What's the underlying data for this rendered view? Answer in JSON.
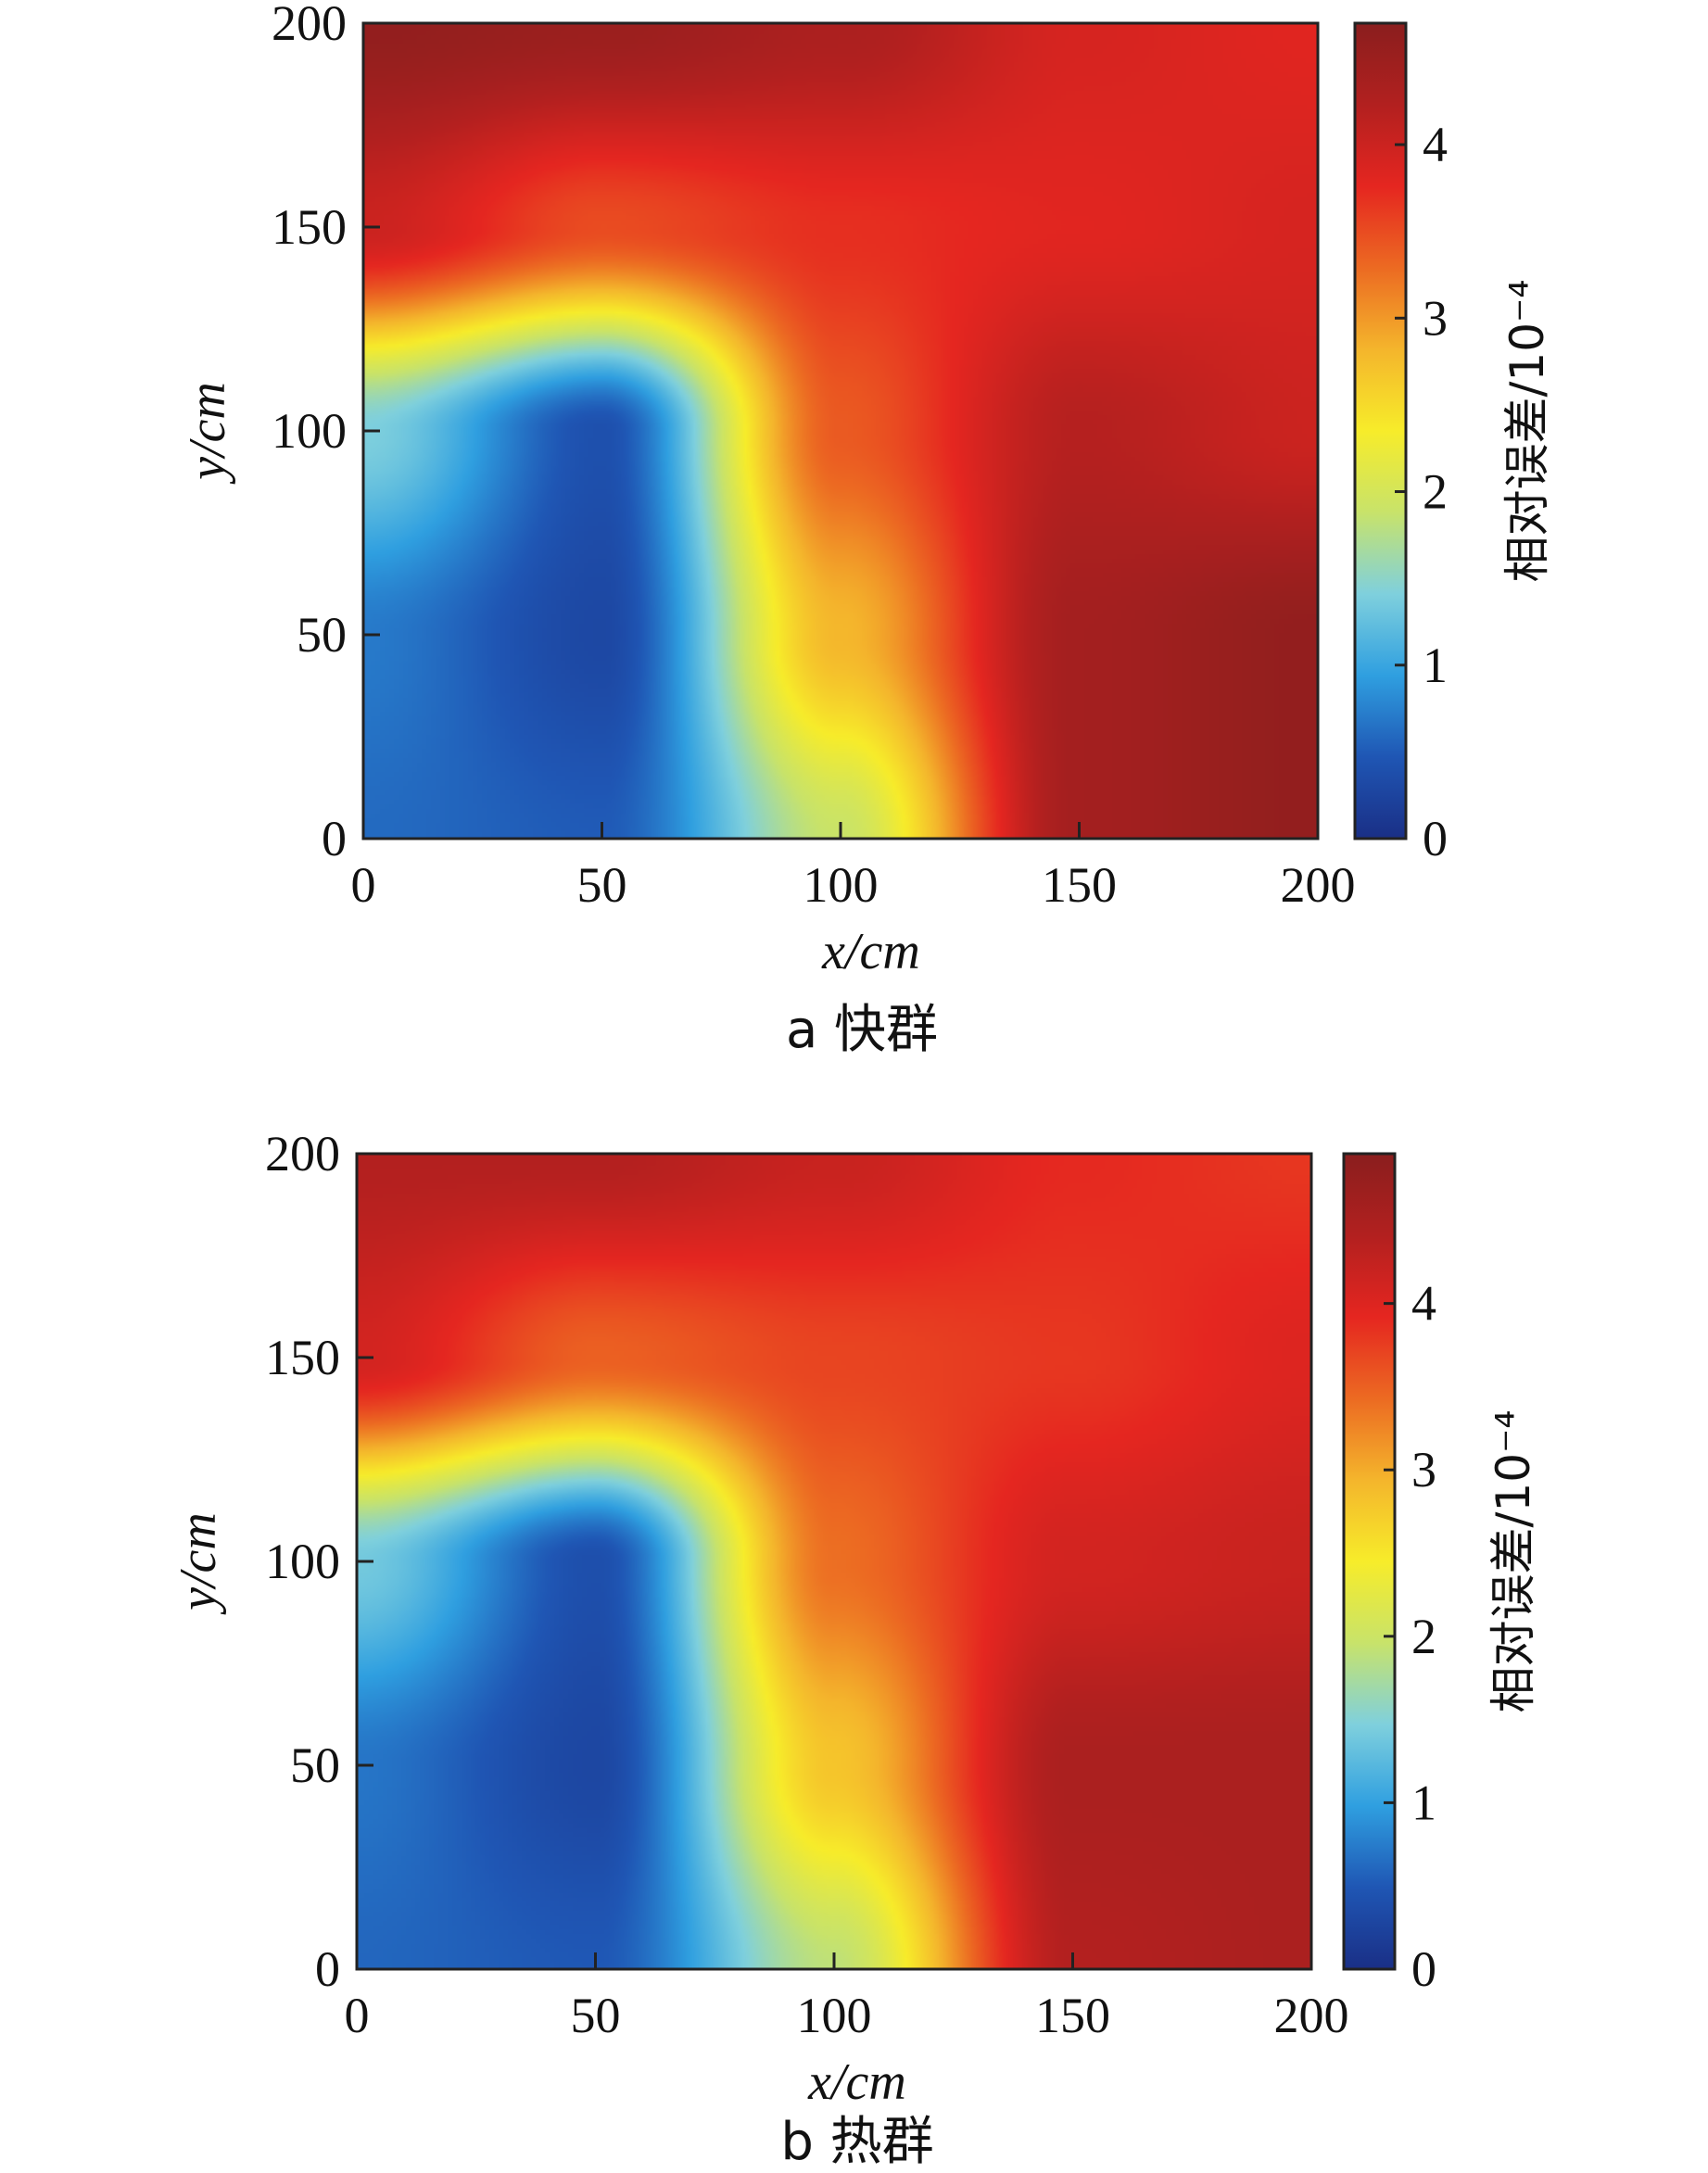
{
  "chart_data": [
    {
      "type": "heatmap",
      "caption": "a 快群",
      "xlabel": "x/cm",
      "ylabel": "y/cm",
      "xlim": [
        0,
        200
      ],
      "ylim": [
        0,
        200
      ],
      "xticks": [
        "0",
        "50",
        "100",
        "150",
        "200"
      ],
      "yticks": [
        "0",
        "50",
        "100",
        "150",
        "200"
      ],
      "colorbar": {
        "label": "相对误差/10⁻⁴",
        "range": [
          0,
          4.7
        ],
        "ticks": [
          "0",
          "1",
          "2",
          "3",
          "4"
        ],
        "colors": [
          "#1a2f86",
          "#1f56b4",
          "#2f9fe0",
          "#7fd0dd",
          "#c8e36a",
          "#f7ec2a",
          "#f4b52c",
          "#ec6a22",
          "#e52620",
          "#b2201f",
          "#8a1e1e"
        ]
      },
      "grid_x": [
        0,
        50,
        100,
        150,
        200
      ],
      "grid_y": [
        0,
        50,
        100,
        150,
        200
      ],
      "values": [
        [
          0.6,
          0.5,
          1.9,
          4.4,
          4.6
        ],
        [
          0.7,
          0.3,
          2.8,
          4.4,
          4.6
        ],
        [
          1.4,
          0.4,
          3.4,
          4.2,
          4.0
        ],
        [
          4.0,
          3.5,
          3.7,
          3.8,
          3.9
        ],
        [
          4.6,
          4.5,
          4.3,
          3.9,
          3.8
        ]
      ]
    },
    {
      "type": "heatmap",
      "caption": "b 热群",
      "xlabel": "x/cm",
      "ylabel": "y/cm",
      "xlim": [
        0,
        200
      ],
      "ylim": [
        0,
        200
      ],
      "xticks": [
        "0",
        "50",
        "100",
        "150",
        "200"
      ],
      "yticks": [
        "0",
        "50",
        "100",
        "150",
        "200"
      ],
      "colorbar": {
        "label": "相对误差/10⁻⁴",
        "range": [
          0,
          4.9
        ],
        "ticks": [
          "0",
          "1",
          "2",
          "3",
          "4"
        ],
        "colors": [
          "#1a2f86",
          "#1f56b4",
          "#2f9fe0",
          "#7fd0dd",
          "#c8e36a",
          "#f7ec2a",
          "#f4b52c",
          "#ec6a22",
          "#e52620",
          "#b2201f",
          "#8a1e1e"
        ]
      },
      "grid_x": [
        0,
        50,
        100,
        150,
        200
      ],
      "grid_y": [
        0,
        50,
        100,
        150,
        200
      ],
      "values": [
        [
          0.6,
          0.5,
          1.9,
          4.4,
          4.5
        ],
        [
          0.7,
          0.3,
          2.8,
          4.5,
          4.5
        ],
        [
          1.4,
          0.4,
          3.4,
          4.1,
          4.2
        ],
        [
          4.1,
          3.5,
          3.7,
          3.8,
          4.0
        ],
        [
          4.4,
          4.4,
          4.2,
          3.9,
          3.8
        ]
      ]
    }
  ]
}
